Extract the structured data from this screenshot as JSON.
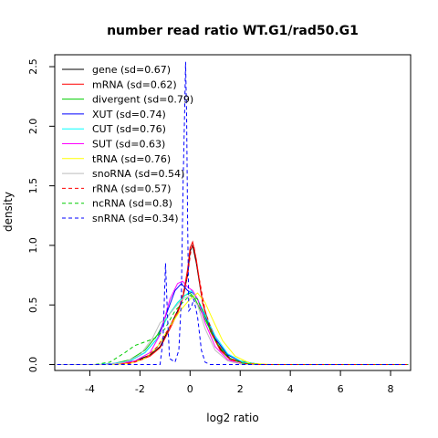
{
  "chart_data": {
    "type": "line",
    "title": "number read ratio WT.G1/rad50.G1",
    "xlabel": "log2 ratio",
    "ylabel": "density",
    "xlim": [
      -5.4,
      8.8
    ],
    "ylim": [
      -0.05,
      2.6
    ],
    "xticks": [
      -4,
      -2,
      0,
      2,
      4,
      6,
      8
    ],
    "yticks": [
      0.0,
      0.5,
      1.0,
      1.5,
      2.0,
      2.5
    ],
    "grid": false,
    "legend_position": "top-left",
    "series": [
      {
        "name": "gene (sd=0.67)",
        "color": "#000000",
        "dash": "solid",
        "points": [
          [
            -5.3,
            0
          ],
          [
            -3.5,
            0
          ],
          [
            -2.8,
            0.01
          ],
          [
            -2.2,
            0.03
          ],
          [
            -1.6,
            0.08
          ],
          [
            -1.2,
            0.15
          ],
          [
            -0.8,
            0.32
          ],
          [
            -0.5,
            0.45
          ],
          [
            -0.3,
            0.55
          ],
          [
            -0.1,
            0.75
          ],
          [
            0.0,
            0.95
          ],
          [
            0.1,
            1.0
          ],
          [
            0.25,
            0.85
          ],
          [
            0.5,
            0.52
          ],
          [
            0.8,
            0.3
          ],
          [
            1.2,
            0.13
          ],
          [
            1.6,
            0.05
          ],
          [
            2.2,
            0.01
          ],
          [
            3.0,
            0
          ],
          [
            8.7,
            0
          ]
        ]
      },
      {
        "name": "mRNA (sd=0.62)",
        "color": "#ff0000",
        "dash": "solid",
        "points": [
          [
            -5.3,
            0
          ],
          [
            -3.5,
            0
          ],
          [
            -2.8,
            0.01
          ],
          [
            -2.2,
            0.02
          ],
          [
            -1.6,
            0.07
          ],
          [
            -1.2,
            0.14
          ],
          [
            -0.8,
            0.3
          ],
          [
            -0.5,
            0.43
          ],
          [
            -0.3,
            0.55
          ],
          [
            -0.1,
            0.8
          ],
          [
            0.0,
            0.98
          ],
          [
            0.1,
            1.03
          ],
          [
            0.25,
            0.88
          ],
          [
            0.5,
            0.52
          ],
          [
            0.8,
            0.28
          ],
          [
            1.2,
            0.12
          ],
          [
            1.6,
            0.04
          ],
          [
            2.2,
            0.01
          ],
          [
            3.0,
            0
          ],
          [
            8.7,
            0
          ]
        ]
      },
      {
        "name": "divergent (sd=0.79)",
        "color": "#00cd00",
        "dash": "solid",
        "points": [
          [
            -5.3,
            0
          ],
          [
            -3.6,
            0
          ],
          [
            -3.0,
            0.01
          ],
          [
            -2.4,
            0.04
          ],
          [
            -1.8,
            0.12
          ],
          [
            -1.3,
            0.25
          ],
          [
            -0.9,
            0.4
          ],
          [
            -0.5,
            0.52
          ],
          [
            -0.2,
            0.58
          ],
          [
            0.0,
            0.6
          ],
          [
            0.2,
            0.55
          ],
          [
            0.5,
            0.42
          ],
          [
            0.9,
            0.25
          ],
          [
            1.4,
            0.1
          ],
          [
            2.0,
            0.03
          ],
          [
            2.8,
            0
          ],
          [
            8.7,
            0
          ]
        ]
      },
      {
        "name": "XUT (sd=0.74)",
        "color": "#0000ff",
        "dash": "solid",
        "points": [
          [
            -5.3,
            0
          ],
          [
            -3.6,
            0
          ],
          [
            -3.0,
            0.01
          ],
          [
            -2.4,
            0.03
          ],
          [
            -1.8,
            0.1
          ],
          [
            -1.3,
            0.22
          ],
          [
            -0.9,
            0.45
          ],
          [
            -0.6,
            0.62
          ],
          [
            -0.35,
            0.68
          ],
          [
            -0.1,
            0.62
          ],
          [
            0.1,
            0.6
          ],
          [
            0.3,
            0.55
          ],
          [
            0.6,
            0.4
          ],
          [
            1.0,
            0.22
          ],
          [
            1.5,
            0.08
          ],
          [
            2.1,
            0.02
          ],
          [
            2.9,
            0
          ],
          [
            8.7,
            0
          ]
        ]
      },
      {
        "name": "CUT (sd=0.76)",
        "color": "#00ffff",
        "dash": "solid",
        "points": [
          [
            -5.3,
            0
          ],
          [
            -3.6,
            0
          ],
          [
            -3.0,
            0.01
          ],
          [
            -2.4,
            0.03
          ],
          [
            -1.8,
            0.1
          ],
          [
            -1.3,
            0.22
          ],
          [
            -0.9,
            0.4
          ],
          [
            -0.5,
            0.52
          ],
          [
            -0.2,
            0.58
          ],
          [
            0.05,
            0.62
          ],
          [
            0.3,
            0.55
          ],
          [
            0.6,
            0.42
          ],
          [
            1.0,
            0.24
          ],
          [
            1.5,
            0.09
          ],
          [
            2.1,
            0.02
          ],
          [
            2.9,
            0
          ],
          [
            8.7,
            0
          ]
        ]
      },
      {
        "name": "SUT (sd=0.63)",
        "color": "#ff00ff",
        "dash": "solid",
        "points": [
          [
            -5.3,
            0
          ],
          [
            -3.4,
            0
          ],
          [
            -2.8,
            0.01
          ],
          [
            -2.2,
            0.03
          ],
          [
            -1.6,
            0.1
          ],
          [
            -1.2,
            0.25
          ],
          [
            -0.8,
            0.55
          ],
          [
            -0.5,
            0.68
          ],
          [
            -0.3,
            0.7
          ],
          [
            -0.1,
            0.65
          ],
          [
            0.1,
            0.62
          ],
          [
            0.3,
            0.55
          ],
          [
            0.6,
            0.35
          ],
          [
            1.0,
            0.15
          ],
          [
            1.5,
            0.04
          ],
          [
            2.1,
            0
          ],
          [
            8.7,
            0
          ]
        ]
      },
      {
        "name": "tRNA (sd=0.76)",
        "color": "#ffff00",
        "dash": "solid",
        "points": [
          [
            -5.3,
            0
          ],
          [
            -3.0,
            0
          ],
          [
            -2.4,
            0.01
          ],
          [
            -1.8,
            0.05
          ],
          [
            -1.3,
            0.15
          ],
          [
            -0.8,
            0.32
          ],
          [
            -0.4,
            0.45
          ],
          [
            0.0,
            0.55
          ],
          [
            0.3,
            0.6
          ],
          [
            0.6,
            0.52
          ],
          [
            0.9,
            0.38
          ],
          [
            1.3,
            0.2
          ],
          [
            1.8,
            0.07
          ],
          [
            2.4,
            0.01
          ],
          [
            3.2,
            0
          ],
          [
            8.7,
            0
          ]
        ]
      },
      {
        "name": "snoRNA (sd=0.54)",
        "color": "#bebebe",
        "dash": "solid",
        "points": [
          [
            -5.3,
            0
          ],
          [
            -3.2,
            0
          ],
          [
            -2.6,
            0.02
          ],
          [
            -2.0,
            0.08
          ],
          [
            -1.5,
            0.22
          ],
          [
            -1.2,
            0.35
          ],
          [
            -0.9,
            0.4
          ],
          [
            -0.6,
            0.48
          ],
          [
            -0.3,
            0.55
          ],
          [
            0.0,
            0.58
          ],
          [
            0.3,
            0.5
          ],
          [
            0.6,
            0.3
          ],
          [
            1.0,
            0.12
          ],
          [
            1.5,
            0.03
          ],
          [
            2.1,
            0
          ],
          [
            8.7,
            0
          ]
        ]
      },
      {
        "name": "rRNA (sd=0.57)",
        "color": "#ff0000",
        "dash": "dashed",
        "points": [
          [
            -5.3,
            0
          ],
          [
            -3.0,
            0
          ],
          [
            -2.4,
            0.01
          ],
          [
            -1.8,
            0.05
          ],
          [
            -1.3,
            0.15
          ],
          [
            -0.8,
            0.32
          ],
          [
            -0.4,
            0.5
          ],
          [
            -0.1,
            0.75
          ],
          [
            0.05,
            0.98
          ],
          [
            0.15,
            1.0
          ],
          [
            0.3,
            0.8
          ],
          [
            0.6,
            0.45
          ],
          [
            1.0,
            0.2
          ],
          [
            1.5,
            0.06
          ],
          [
            2.1,
            0.01
          ],
          [
            2.8,
            0
          ],
          [
            8.7,
            0
          ]
        ]
      },
      {
        "name": "ncRNA (sd=0.8)",
        "color": "#00cd00",
        "dash": "dashed",
        "points": [
          [
            -5.3,
            0
          ],
          [
            -3.8,
            0
          ],
          [
            -3.2,
            0.02
          ],
          [
            -2.6,
            0.1
          ],
          [
            -2.2,
            0.16
          ],
          [
            -1.8,
            0.19
          ],
          [
            -1.4,
            0.22
          ],
          [
            -1.0,
            0.3
          ],
          [
            -0.6,
            0.45
          ],
          [
            -0.3,
            0.52
          ],
          [
            0.0,
            0.58
          ],
          [
            0.3,
            0.55
          ],
          [
            0.6,
            0.4
          ],
          [
            1.0,
            0.2
          ],
          [
            1.5,
            0.06
          ],
          [
            2.1,
            0.01
          ],
          [
            2.8,
            0
          ],
          [
            8.7,
            0
          ]
        ]
      },
      {
        "name": "snRNA (sd=0.34)",
        "color": "#0000ff",
        "dash": "dashed",
        "points": [
          [
            -5.3,
            0
          ],
          [
            -1.2,
            0
          ],
          [
            -1.08,
            0.2
          ],
          [
            -0.98,
            0.85
          ],
          [
            -0.9,
            0.4
          ],
          [
            -0.82,
            0.05
          ],
          [
            -0.6,
            0.02
          ],
          [
            -0.45,
            0.12
          ],
          [
            -0.35,
            0.55
          ],
          [
            -0.28,
            1.5
          ],
          [
            -0.22,
            2.1
          ],
          [
            -0.18,
            2.54
          ],
          [
            -0.14,
            2.1
          ],
          [
            -0.1,
            1.2
          ],
          [
            -0.05,
            0.45
          ],
          [
            0.05,
            0.48
          ],
          [
            0.15,
            0.55
          ],
          [
            0.3,
            0.4
          ],
          [
            0.45,
            0.12
          ],
          [
            0.6,
            0.02
          ],
          [
            0.8,
            0
          ],
          [
            8.7,
            0
          ]
        ]
      }
    ]
  }
}
